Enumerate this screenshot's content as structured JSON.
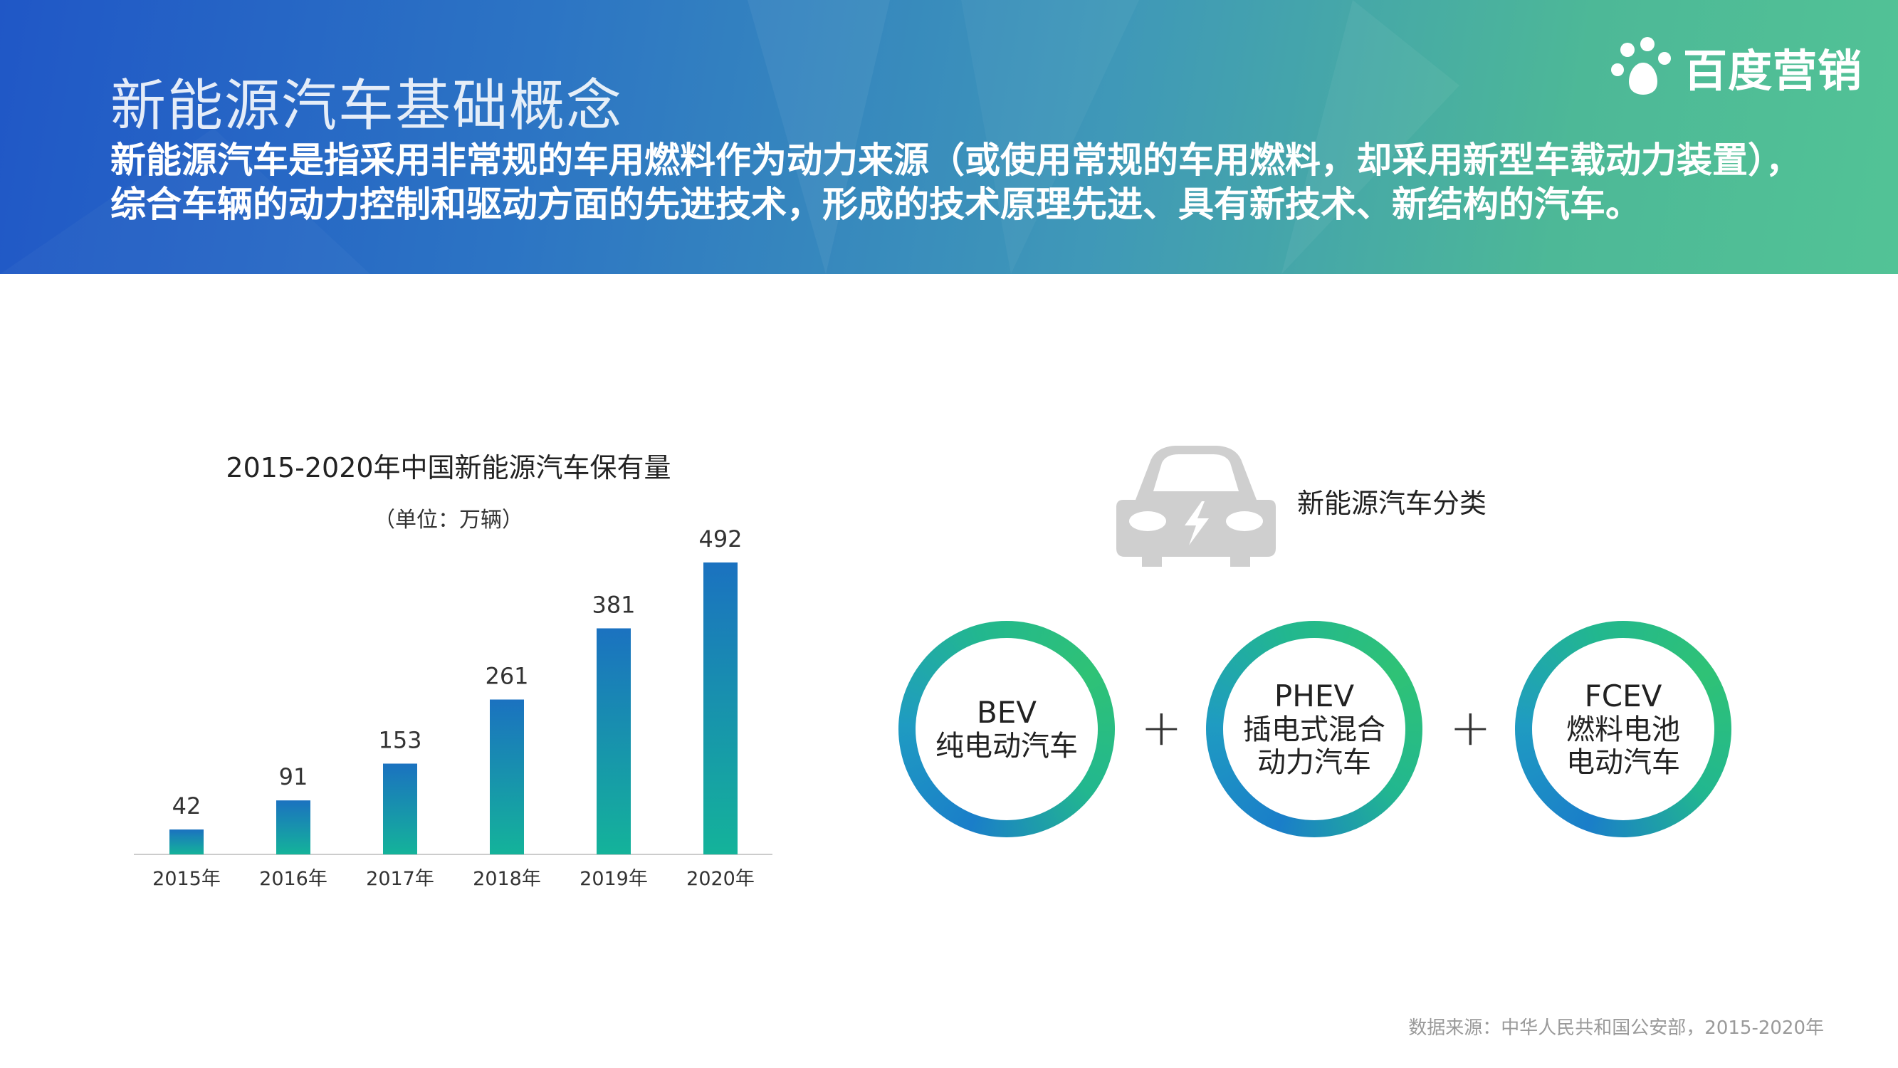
{
  "header": {
    "title": "新能源汽车基础概念",
    "intro_lines": [
      "新能源汽车是指采用非常规的车用燃料作为动力来源（或使用常规的车用燃料，却采用新型车载动力装置），",
      "综合车辆的动力控制和驱动方面的先进技术，形成的技术原理先进、具有新技术、新结构的汽车。"
    ],
    "brand": {
      "name": "百度营销",
      "icon": "baidu-paw-icon"
    }
  },
  "chart_data": {
    "type": "bar",
    "title": "2015-2020年中国新能源汽车保有量",
    "unit": "（单位：万辆）",
    "categories": [
      "2015年",
      "2016年",
      "2017年",
      "2018年",
      "2019年",
      "2020年"
    ],
    "values": [
      42,
      91,
      153,
      261,
      381,
      492
    ],
    "ylim": [
      0,
      492
    ],
    "grid": false,
    "legend": "none",
    "colors": {
      "bar_top": "#1b72c0",
      "bar_bottom": "#14b39a",
      "axis": "#cccccc",
      "label": "#333333"
    }
  },
  "classification": {
    "title": "新能源汽车分类",
    "icon": "electric-car-icon",
    "types": [
      {
        "abbr": "BEV",
        "lines": [
          "纯电动汽车"
        ]
      },
      {
        "abbr": "PHEV",
        "lines": [
          "插电式混合",
          "动力汽车"
        ]
      },
      {
        "abbr": "FCEV",
        "lines": [
          "燃料电池",
          "电动汽车"
        ]
      }
    ],
    "separator": "+"
  },
  "source": "数据来源：中华人民共和国公安部，2015-2020年"
}
